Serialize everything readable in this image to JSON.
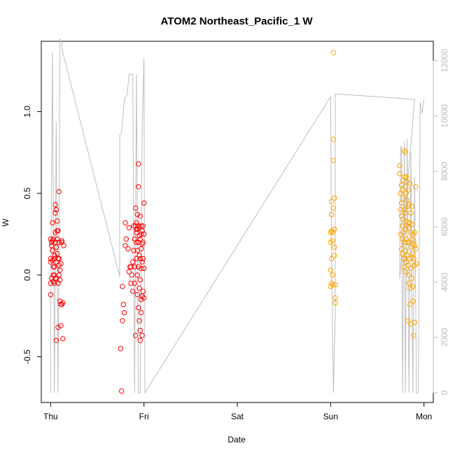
{
  "chart_data": {
    "type": "scatter",
    "title": "ATOM2 Northeast_Pacific_1 W",
    "xlabel": "Date",
    "ylabel": "W",
    "x_ticks": [
      "Thu",
      "Fri",
      "Sat",
      "Sun",
      "Mon"
    ],
    "xlim": [
      -0.1,
      4.1
    ],
    "ylim": [
      -0.78,
      1.43
    ],
    "y_ticks": [
      -0.5,
      0.0,
      0.5,
      1.0
    ],
    "y_tick_labels": [
      "-0.5",
      "0.0",
      "0.5",
      "1.0"
    ],
    "y2_ticks": [
      0,
      2000,
      4000,
      6000,
      8000,
      10000,
      12000
    ],
    "y2_tick_labels": [
      "0",
      "2000",
      "4000",
      "6000",
      "8000",
      "10000",
      "12000"
    ],
    "y2lim": [
      -350,
      12700
    ],
    "grid": false,
    "colors": {
      "series_red": "#ff0000",
      "series_orange": "#ffa500",
      "secondary_line": "#bfbfbf"
    },
    "series": [
      {
        "marker": "circle-open",
        "color": "#ff0000",
        "points": [
          [
            0.0,
            0.22
          ],
          [
            0.01,
            0.18
          ],
          [
            0.0,
            0.1
          ],
          [
            0.0,
            0.08
          ],
          [
            0.01,
            -0.02
          ],
          [
            0.0,
            -0.05
          ],
          [
            0.0,
            -0.12
          ],
          [
            0.01,
            0.2
          ],
          [
            0.02,
            0.32
          ],
          [
            0.02,
            0.21
          ],
          [
            0.02,
            0.15
          ],
          [
            0.03,
            0.05
          ],
          [
            0.03,
            -0.04
          ],
          [
            0.03,
            0.22
          ],
          [
            0.04,
            0.1
          ],
          [
            0.04,
            0.0
          ],
          [
            0.04,
            0.12
          ],
          [
            0.04,
            -0.05
          ],
          [
            0.05,
            0.43
          ],
          [
            0.05,
            0.38
          ],
          [
            0.05,
            0.26
          ],
          [
            0.06,
            0.4
          ],
          [
            0.06,
            0.08
          ],
          [
            0.06,
            -0.02
          ],
          [
            0.06,
            -0.4
          ],
          [
            0.07,
            0.27
          ],
          [
            0.07,
            0.22
          ],
          [
            0.07,
            0.33
          ],
          [
            0.08,
            0.27
          ],
          [
            0.08,
            0.1
          ],
          [
            0.08,
            -0.05
          ],
          [
            0.08,
            -0.32
          ],
          [
            0.09,
            0.51
          ],
          [
            0.09,
            0.2
          ],
          [
            0.09,
            0.1
          ],
          [
            0.09,
            0.0
          ],
          [
            0.1,
            -0.03
          ],
          [
            0.1,
            -0.16
          ],
          [
            0.1,
            0.03
          ],
          [
            0.11,
            0.07
          ],
          [
            0.11,
            -0.18
          ],
          [
            0.11,
            -0.31
          ],
          [
            0.12,
            0.2
          ],
          [
            0.12,
            0.21
          ],
          [
            0.12,
            -0.18
          ],
          [
            0.13,
            -0.39
          ],
          [
            0.13,
            -0.17
          ],
          [
            0.14,
            0.18
          ],
          [
            0.04,
            0.05
          ],
          [
            0.05,
            -0.02
          ],
          [
            0.03,
            0.0
          ],
          [
            0.02,
            0.09
          ],
          [
            0.07,
            0.13
          ],
          [
            0.06,
            0.17
          ],
          [
            0.05,
            0.2
          ],
          [
            0.09,
            0.06
          ],
          [
            0.75,
            -0.45
          ],
          [
            0.76,
            -0.71
          ],
          [
            0.77,
            -0.07
          ],
          [
            0.77,
            -0.28
          ],
          [
            0.78,
            -0.18
          ],
          [
            0.79,
            -0.23
          ],
          [
            0.8,
            0.32
          ],
          [
            0.8,
            0.18
          ],
          [
            0.81,
            0.22
          ],
          [
            0.83,
            0.16
          ],
          [
            0.84,
            0.29
          ],
          [
            0.84,
            0.02
          ],
          [
            0.85,
            0.05
          ],
          [
            0.86,
            0.05
          ],
          [
            0.86,
            -0.05
          ],
          [
            0.87,
            0.0
          ],
          [
            0.88,
            0.08
          ],
          [
            0.88,
            -0.1
          ],
          [
            0.89,
            0.15
          ],
          [
            0.89,
            0.3
          ],
          [
            0.9,
            0.22
          ],
          [
            0.9,
            0.05
          ],
          [
            0.91,
            0.41
          ],
          [
            0.91,
            0.3
          ],
          [
            0.92,
            0.28
          ],
          [
            0.92,
            0.32
          ],
          [
            0.92,
            0.2
          ],
          [
            0.92,
            0.1
          ],
          [
            0.93,
            0.37
          ],
          [
            0.93,
            0.28
          ],
          [
            0.93,
            0.0
          ],
          [
            0.93,
            -0.12
          ],
          [
            0.94,
            0.68
          ],
          [
            0.94,
            0.54
          ],
          [
            0.94,
            0.3
          ],
          [
            0.94,
            0.2
          ],
          [
            0.94,
            0.05
          ],
          [
            0.95,
            0.29
          ],
          [
            0.95,
            0.24
          ],
          [
            0.95,
            -0.08
          ],
          [
            0.95,
            -0.28
          ],
          [
            0.96,
            0.36
          ],
          [
            0.96,
            0.22
          ],
          [
            0.96,
            0.1
          ],
          [
            0.96,
            -0.03
          ],
          [
            0.96,
            -0.34
          ],
          [
            0.96,
            -0.4
          ],
          [
            0.97,
            0.3
          ],
          [
            0.97,
            0.16
          ],
          [
            0.97,
            0.04
          ],
          [
            0.97,
            -0.15
          ],
          [
            0.97,
            -0.23
          ],
          [
            0.98,
            0.27
          ],
          [
            0.98,
            0.19
          ],
          [
            0.98,
            0.08
          ],
          [
            0.98,
            -0.13
          ],
          [
            0.99,
            0.3
          ],
          [
            0.99,
            0.2
          ],
          [
            0.99,
            0.1
          ],
          [
            0.99,
            -0.1
          ],
          [
            1.0,
            0.44
          ],
          [
            1.0,
            0.25
          ],
          [
            1.0,
            0.04
          ],
          [
            1.0,
            -0.14
          ],
          [
            0.98,
            -0.37
          ],
          [
            0.91,
            -0.37
          ],
          [
            0.95,
            0.12
          ],
          [
            0.93,
            0.15
          ],
          [
            0.92,
            0.26
          ],
          [
            0.97,
            0.25
          ],
          [
            0.9,
            -0.05
          ],
          [
            0.94,
            -0.2
          ]
        ]
      },
      {
        "marker": "circle-open",
        "color": "#ffa500",
        "points": [
          [
            3.0,
            0.26
          ],
          [
            3.0,
            0.2
          ],
          [
            3.0,
            0.03
          ],
          [
            3.0,
            -0.07
          ],
          [
            3.01,
            0.45
          ],
          [
            3.01,
            0.37
          ],
          [
            3.01,
            0.27
          ],
          [
            3.01,
            0.1
          ],
          [
            3.01,
            -0.05
          ],
          [
            3.02,
            0.21
          ],
          [
            3.02,
            0.0
          ],
          [
            3.02,
            -0.06
          ],
          [
            3.03,
            1.36
          ],
          [
            3.03,
            0.83
          ],
          [
            3.03,
            0.7
          ],
          [
            3.03,
            0.41
          ],
          [
            3.04,
            0.47
          ],
          [
            3.04,
            0.28
          ],
          [
            3.04,
            0.17
          ],
          [
            3.04,
            0.12
          ],
          [
            3.05,
            -0.14
          ],
          [
            3.05,
            -0.17
          ],
          [
            3.05,
            -0.06
          ],
          [
            3.02,
            0.26
          ],
          [
            3.74,
            0.67
          ],
          [
            3.74,
            0.62
          ],
          [
            3.75,
            0.5
          ],
          [
            3.75,
            0.4
          ],
          [
            3.75,
            0.25
          ],
          [
            3.76,
            0.55
          ],
          [
            3.76,
            0.44
          ],
          [
            3.76,
            0.36
          ],
          [
            3.76,
            0.16
          ],
          [
            3.77,
            0.52
          ],
          [
            3.77,
            0.3
          ],
          [
            3.77,
            0.22
          ],
          [
            3.77,
            0.13
          ],
          [
            3.78,
            0.58
          ],
          [
            3.78,
            0.47
          ],
          [
            3.78,
            0.34
          ],
          [
            3.78,
            0.26
          ],
          [
            3.78,
            0.1
          ],
          [
            3.79,
            0.76
          ],
          [
            3.79,
            0.6
          ],
          [
            3.79,
            0.4
          ],
          [
            3.79,
            0.2
          ],
          [
            3.79,
            0.05
          ],
          [
            3.8,
            0.75
          ],
          [
            3.8,
            0.54
          ],
          [
            3.8,
            0.38
          ],
          [
            3.8,
            0.28
          ],
          [
            3.8,
            0.15
          ],
          [
            3.8,
            0.02
          ],
          [
            3.81,
            0.6
          ],
          [
            3.81,
            0.5
          ],
          [
            3.81,
            0.33
          ],
          [
            3.81,
            0.22
          ],
          [
            3.81,
            0.08
          ],
          [
            3.82,
            0.57
          ],
          [
            3.82,
            0.46
          ],
          [
            3.82,
            0.3
          ],
          [
            3.82,
            0.12
          ],
          [
            3.83,
            0.52
          ],
          [
            3.83,
            0.42
          ],
          [
            3.83,
            0.32
          ],
          [
            3.83,
            0.06
          ],
          [
            3.83,
            -0.28
          ],
          [
            3.84,
            0.43
          ],
          [
            3.84,
            0.29
          ],
          [
            3.84,
            0.2
          ],
          [
            3.84,
            0.0
          ],
          [
            3.84,
            -0.05
          ],
          [
            3.85,
            0.56
          ],
          [
            3.85,
            0.32
          ],
          [
            3.85,
            0.1
          ],
          [
            3.85,
            -0.08
          ],
          [
            3.85,
            -0.18
          ],
          [
            3.86,
            0.38
          ],
          [
            3.86,
            0.26
          ],
          [
            3.86,
            0.17
          ],
          [
            3.86,
            0.04
          ],
          [
            3.86,
            -0.3
          ],
          [
            3.87,
            0.42
          ],
          [
            3.87,
            0.31
          ],
          [
            3.87,
            0.22
          ],
          [
            3.87,
            0.11
          ],
          [
            3.87,
            -0.02
          ],
          [
            3.88,
            0.25
          ],
          [
            3.88,
            0.13
          ],
          [
            3.88,
            -0.07
          ],
          [
            3.88,
            -0.16
          ],
          [
            3.89,
            0.21
          ],
          [
            3.89,
            0.1
          ],
          [
            3.89,
            -0.37
          ],
          [
            3.9,
            0.26
          ],
          [
            3.9,
            0.18
          ],
          [
            3.9,
            0.06
          ],
          [
            3.9,
            -0.29
          ],
          [
            3.91,
            0.54
          ],
          [
            3.91,
            0.16
          ],
          [
            3.92,
            0.07
          ],
          [
            3.88,
            0.19
          ],
          [
            3.82,
            0.2
          ],
          [
            3.8,
            0.1
          ]
        ]
      },
      {
        "type": "line",
        "axis": "right",
        "color": "#bfbfbf",
        "points": [
          [
            0.0,
            0
          ],
          [
            0.0,
            2700
          ],
          [
            0.02,
            12300
          ],
          [
            0.04,
            0
          ],
          [
            0.06,
            9800
          ],
          [
            0.08,
            0
          ],
          [
            0.1,
            12800
          ],
          [
            0.12,
            12600
          ],
          [
            0.13,
            12300
          ],
          [
            0.74,
            4200
          ],
          [
            0.74,
            9300
          ],
          [
            0.76,
            9400
          ],
          [
            0.79,
            10600
          ],
          [
            0.82,
            10800
          ],
          [
            0.84,
            11500
          ],
          [
            0.88,
            11500
          ],
          [
            0.9,
            0
          ],
          [
            0.92,
            11500
          ],
          [
            0.94,
            0
          ],
          [
            0.96,
            0
          ],
          [
            0.98,
            9500
          ],
          [
            1.0,
            12100
          ],
          [
            1.01,
            0
          ],
          [
            3.0,
            10700
          ],
          [
            3.01,
            5000
          ],
          [
            3.03,
            0
          ],
          [
            3.05,
            2900
          ],
          [
            3.05,
            10800
          ],
          [
            3.9,
            10600
          ],
          [
            3.74,
            4100
          ],
          [
            3.75,
            8900
          ],
          [
            3.76,
            8900
          ],
          [
            3.77,
            0
          ],
          [
            3.79,
            9100
          ],
          [
            3.8,
            0
          ],
          [
            3.82,
            9200
          ],
          [
            3.84,
            0
          ],
          [
            3.86,
            8700
          ],
          [
            3.88,
            0
          ],
          [
            3.9,
            7800
          ],
          [
            3.92,
            0
          ],
          [
            3.94,
            0
          ],
          [
            3.96,
            10500
          ],
          [
            3.98,
            10100
          ],
          [
            4.0,
            10600
          ]
        ]
      }
    ]
  }
}
